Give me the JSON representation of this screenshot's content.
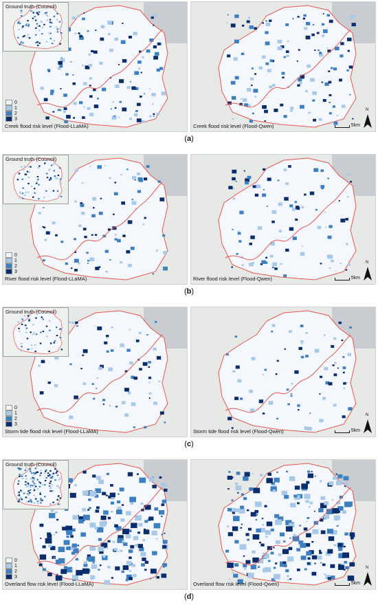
{
  "inset_title": "Ground truth (Council)",
  "legend_levels": [
    "0",
    "1",
    "2",
    "3"
  ],
  "legend_colors": [
    "#f0f5fb",
    "#a9c9e8",
    "#3e7fc0",
    "#0b2d6b"
  ],
  "scale": {
    "value": "5",
    "unit": "km"
  },
  "north_label": "N",
  "panels": [
    {
      "id": "a",
      "left_label": "Creek flood risk level (Flood-LLaMA)",
      "right_label": "Creek flood risk level (Flood-Qwen)",
      "caption_letter": "a",
      "density": 0.35
    },
    {
      "id": "b",
      "left_label": "River flood risk level (Flood-LLaMA)",
      "right_label": "River flood risk level (Flood-Qwen)",
      "caption_letter": "b",
      "density": 0.2
    },
    {
      "id": "c",
      "left_label": "Storm tide flood risk level (Flood-LLaMA)",
      "right_label": "Storm tide flood risk level (Flood-Qwen)",
      "caption_letter": "c",
      "density": 0.12
    },
    {
      "id": "d",
      "left_label": "Overland flow risk level (Flood-LLaMA)",
      "right_label": "Overland flow risk level (Flood-Qwen)",
      "caption_letter": "d",
      "density": 0.75
    }
  ],
  "colors": {
    "boundary": "#e8564f",
    "base_land": "#e7e9e7",
    "water": "#c9ccd0",
    "region_fill": "#f4f7fb"
  }
}
